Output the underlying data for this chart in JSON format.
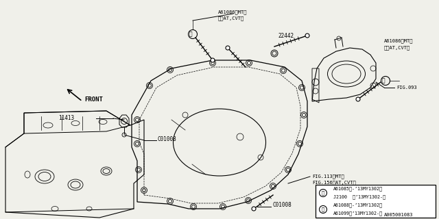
{
  "bg_color": "#f0f0ea",
  "line_color": "#000000",
  "part_number_bottom": "A005001083",
  "labels": {
    "front": "FRONT",
    "11413": "11413",
    "C01008_left": "C01008",
    "C01008_right": "C01008",
    "22442": "22442",
    "A61086_top_mt": "A61086〈MT〉",
    "A61086_top_atcvt": "①〈AT,CVT〉",
    "A61086_right_mt": "A61086〈MT〉",
    "A61086_right_atcvt": "②〈AT,CVT〉",
    "FIG093": "FIG.093",
    "FIG113": "FIG.113〈MT〉",
    "FIG156": "FIG.156〈AT,CVT〉"
  },
  "legend_rows": [
    "A61085（-’13MY1302）",
    "J2100  （’13MY1302-）",
    "A61088（-’13MY1302）",
    "A61099（’13MY1302-）"
  ]
}
